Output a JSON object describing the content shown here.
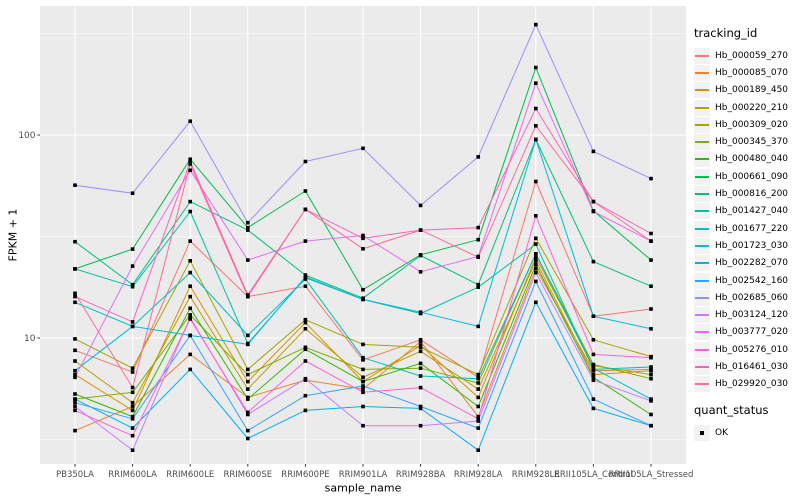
{
  "figure": {
    "y_axis_title": "FPKM + 1",
    "x_axis_title": "sample_name",
    "legend": {
      "color_legend_title": "tracking_id",
      "shape_legend_title": "quant_status",
      "shape_legend_label": "OK"
    }
  },
  "style": {
    "panel_bg": "#EBEBEB",
    "grid_color": "#FFFFFF",
    "tick_label_color": "#4D4D4D",
    "tick_mark_color": "#333333",
    "point_color": "#000000",
    "legend_key_bg": "#F2F2F2"
  },
  "chart_data": {
    "type": "line",
    "title": "",
    "xlabel": "sample_name",
    "ylabel": "FPKM + 1",
    "y_scale": "log10",
    "y_major_ticks": [
      10,
      100
    ],
    "y_minor_gridlines": [
      3.162,
      31.62,
      316.2
    ],
    "ylim": [
      2.4,
      420
    ],
    "grid": "on",
    "legend_position": "right",
    "point_shape": "filled-square-black",
    "point_legend_label": "OK",
    "categories": [
      "PB350LA",
      "RRIM600LA",
      "RRIM600LE",
      "RRIM600SE",
      "RRIM600PE",
      "RRIM901LA",
      "RRIM928BA",
      "RRIM928LA",
      "RRIM928LE",
      "RRII105LA_Control",
      "RRII105LA_Stressed"
    ],
    "series": [
      {
        "name": "Hb_000059_270",
        "color": "#F8766D",
        "values": [
          8.7,
          6.8,
          30,
          16,
          18,
          7.8,
          9.8,
          6.4,
          59,
          12.8,
          13.9
        ]
      },
      {
        "name": "Hb_000085_070",
        "color": "#EA8331",
        "values": [
          3.5,
          4.6,
          8.3,
          5.1,
          6.2,
          5.6,
          9.6,
          4.1,
          22,
          6.9,
          7.0
        ]
      },
      {
        "name": "Hb_000189_450",
        "color": "#D89000",
        "values": [
          6.6,
          4.4,
          18,
          6.1,
          11.9,
          6.1,
          9.2,
          5.1,
          25,
          7.3,
          6.6
        ]
      },
      {
        "name": "Hb_000220_210",
        "color": "#C09B00",
        "values": [
          7.7,
          4.8,
          16,
          5.6,
          11.1,
          6.4,
          8.6,
          5.6,
          24,
          6.6,
          6.9
        ]
      },
      {
        "name": "Hb_000309_020",
        "color": "#A3A500",
        "values": [
          9.9,
          7.1,
          24,
          7.0,
          12.3,
          9.3,
          9.0,
          6.6,
          31,
          9.8,
          8.1
        ]
      },
      {
        "name": "Hb_000345_370",
        "color": "#7CAE00",
        "values": [
          5.0,
          5.4,
          13,
          6.6,
          9.0,
          7.0,
          7.1,
          6.0,
          26,
          7.4,
          6.3
        ]
      },
      {
        "name": "Hb_000480_040",
        "color": "#39B600",
        "values": [
          5.3,
          4.1,
          14,
          5.0,
          8.8,
          6.1,
          7.5,
          4.6,
          23,
          6.4,
          4.2
        ]
      },
      {
        "name": "Hb_000661_090",
        "color": "#00BB4E",
        "values": [
          21.9,
          27.4,
          76,
          35,
          53,
          17.3,
          25.7,
          30.5,
          215,
          42.3,
          24.2
        ]
      },
      {
        "name": "Hb_000816_200",
        "color": "#00BF7D",
        "values": [
          29.8,
          18.3,
          47,
          34,
          20.4,
          15.7,
          25.5,
          18.3,
          95,
          23.8,
          18.0
        ]
      },
      {
        "name": "Hb_001427_040",
        "color": "#00C1A7",
        "values": [
          21.9,
          17.9,
          42,
          9.4,
          19.8,
          15.5,
          13.2,
          17.8,
          29,
          7.0,
          7.2
        ]
      },
      {
        "name": "Hb_001677_220",
        "color": "#00BFC4",
        "values": [
          15.0,
          11.4,
          21,
          10.3,
          19.5,
          8.0,
          6.5,
          6.3,
          26,
          7.1,
          5.0
        ]
      },
      {
        "name": "Hb_001723_030",
        "color": "#00BADE",
        "values": [
          6.9,
          11.4,
          10.3,
          9.3,
          20,
          15.5,
          13.4,
          11.4,
          95,
          12.8,
          11.1
        ]
      },
      {
        "name": "Hb_002282_070",
        "color": "#00B0F6",
        "values": [
          5.0,
          3.6,
          7.0,
          3.2,
          4.4,
          4.6,
          4.5,
          2.8,
          15,
          4.5,
          3.7
        ]
      },
      {
        "name": "Hb_002542_160",
        "color": "#35A2FF",
        "values": [
          4.8,
          4.0,
          10.3,
          3.5,
          5.2,
          5.8,
          4.6,
          3.6,
          19,
          5.0,
          3.7
        ]
      },
      {
        "name": "Hb_002685_060",
        "color": "#9590FF",
        "values": [
          56.6,
          51.7,
          117,
          37,
          74,
          86,
          45,
          78,
          350,
          83,
          61
        ]
      },
      {
        "name": "Hb_003124_120",
        "color": "#C77CFF",
        "values": [
          4.6,
          2.8,
          12.6,
          4.2,
          6.3,
          3.7,
          3.7,
          3.9,
          21,
          6.2,
          4.9
        ]
      },
      {
        "name": "Hb_003777_020",
        "color": "#E76BF3",
        "values": [
          6.4,
          22.6,
          67,
          24.2,
          30,
          32,
          21.2,
          25.2,
          180,
          42,
          30
        ]
      },
      {
        "name": "Hb_005276_010",
        "color": "#FA62DB",
        "values": [
          4.4,
          3.3,
          12.4,
          4.3,
          7.7,
          5.4,
          5.7,
          4.0,
          40,
          8.3,
          8.0
        ]
      },
      {
        "name": "Hb_016461_030",
        "color": "#FF62BC",
        "values": [
          16.0,
          12.0,
          74,
          16.3,
          43,
          31,
          34,
          35,
          135,
          47,
          32.7
        ]
      },
      {
        "name": "Hb_029920_030",
        "color": "#FF6A98",
        "values": [
          16.6,
          5.7,
          72,
          16.0,
          43,
          27.5,
          34,
          25,
          111,
          47,
          30
        ]
      }
    ]
  }
}
